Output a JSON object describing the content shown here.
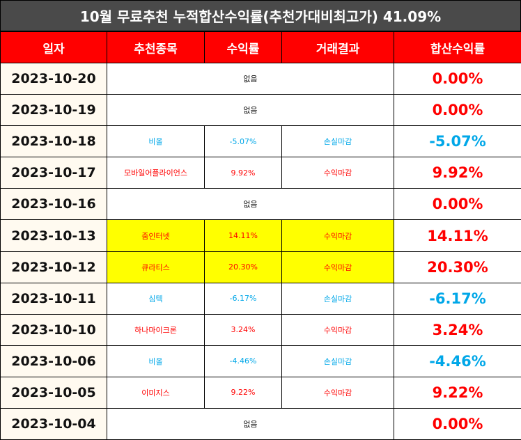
{
  "title": "10월 무료추천 누적합산수익률(추천가대비최고가) 41.09%",
  "headers": {
    "date": "일자",
    "stock": "추천종목",
    "return": "수익률",
    "result": "거래결과",
    "total": "합산수익률"
  },
  "colors": {
    "header_bg": "#ff0000",
    "gain": "#ff0000",
    "loss": "#00a7e8",
    "highlight": "#ffff00",
    "title_bg": "#4a4a4a"
  },
  "rows": [
    {
      "date": "2023-10-20",
      "none": "없음",
      "total": "0.00%",
      "tone": "red"
    },
    {
      "date": "2023-10-19",
      "none": "없음",
      "total": "0.00%",
      "tone": "red"
    },
    {
      "date": "2023-10-18",
      "stock": "비올",
      "return": "-5.07%",
      "result": "손실마감",
      "total": "-5.07%",
      "tone": "blue"
    },
    {
      "date": "2023-10-17",
      "stock": "모바일어플라이언스",
      "return": "9.92%",
      "result": "수익마감",
      "total": "9.92%",
      "tone": "red"
    },
    {
      "date": "2023-10-16",
      "none": "없음",
      "total": "0.00%",
      "tone": "red"
    },
    {
      "date": "2023-10-13",
      "stock": "줌인터넷",
      "return": "14.11%",
      "result": "수익마감",
      "total": "14.11%",
      "tone": "red",
      "highlight": true
    },
    {
      "date": "2023-10-12",
      "stock": "큐라티스",
      "return": "20.30%",
      "result": "수익마감",
      "total": "20.30%",
      "tone": "red",
      "highlight": true
    },
    {
      "date": "2023-10-11",
      "stock": "심텍",
      "return": "-6.17%",
      "result": "손실마감",
      "total": "-6.17%",
      "tone": "blue"
    },
    {
      "date": "2023-10-10",
      "stock": "하나마이크론",
      "return": "3.24%",
      "result": "수익마감",
      "total": "3.24%",
      "tone": "red"
    },
    {
      "date": "2023-10-06",
      "stock": "비올",
      "return": "-4.46%",
      "result": "손실마감",
      "total": "-4.46%",
      "tone": "blue"
    },
    {
      "date": "2023-10-05",
      "stock": "이미지스",
      "return": "9.22%",
      "result": "수익마감",
      "total": "9.22%",
      "tone": "red"
    },
    {
      "date": "2023-10-04",
      "none": "없음",
      "total": "0.00%",
      "tone": "red"
    }
  ]
}
